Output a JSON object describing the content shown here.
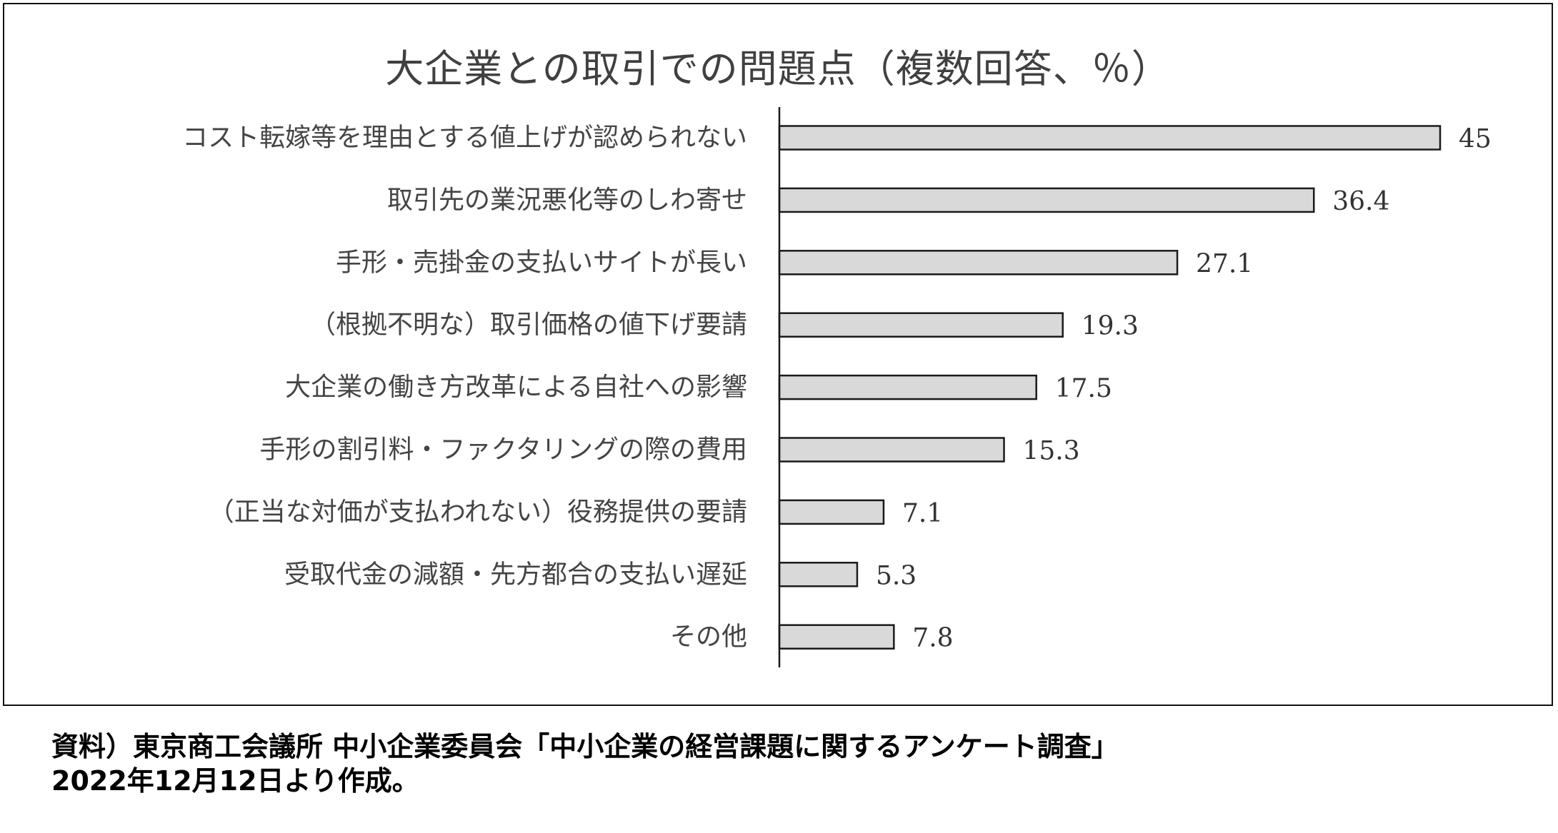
{
  "title": "大企業との取引での問題点（複数回答、％）",
  "source": {
    "line1": "資料）東京商工会議所 中小企業委員会「中小企業の経営課題に関するアンケート調査」",
    "line2": "2022年12月12日より作成。"
  },
  "chart_data": {
    "type": "bar",
    "orientation": "horizontal",
    "title": "大企業との取引での問題点（複数回答、％）",
    "categories": [
      "コスト転嫁等を理由とする値上げが認められない",
      "取引先の業況悪化等のしわ寄せ",
      "手形・売掛金の支払いサイトが長い",
      "（根拠不明な）取引価格の値下げ要請",
      "大企業の働き方改革による自社への影響",
      "手形の割引料・ファクタリングの際の費用",
      "（正当な対価が支払われない）役務提供の要請",
      "受取代金の減額・先方都合の支払い遅延",
      "その他"
    ],
    "values": [
      45,
      36.4,
      27.1,
      19.3,
      17.5,
      15.3,
      7.1,
      5.3,
      7.8
    ],
    "value_labels": [
      "45",
      "36.4",
      "27.1",
      "19.3",
      "17.5",
      "15.3",
      "7.1",
      "5.3",
      "7.8"
    ],
    "xlim": [
      0,
      45
    ],
    "bar_color": "#d9d9d9",
    "grid": false,
    "legend": "none"
  }
}
